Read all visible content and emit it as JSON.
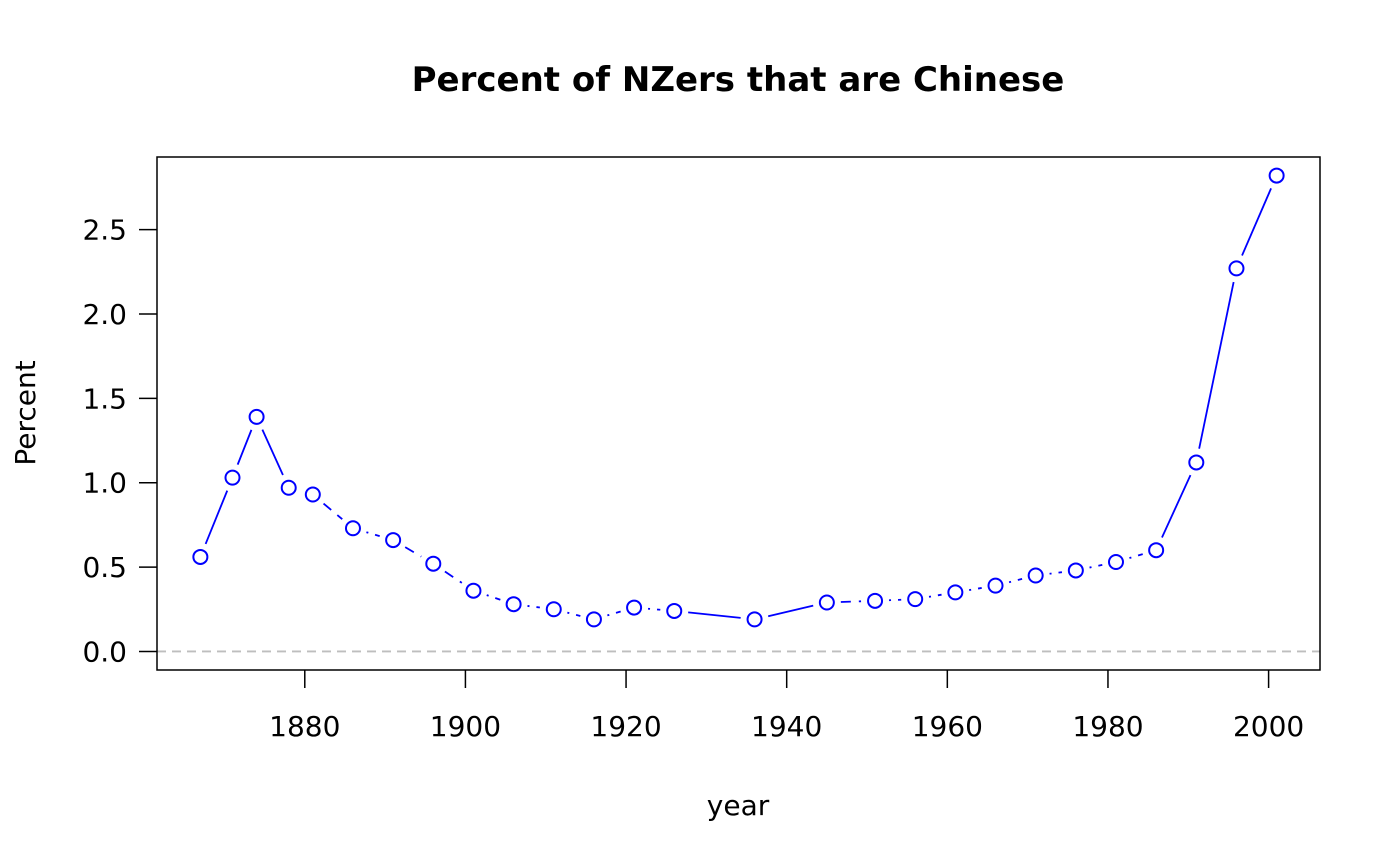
{
  "chart_data": {
    "type": "line",
    "title": "Percent of NZers that are Chinese",
    "xlabel": "year",
    "ylabel": "Percent",
    "x_ticks": [
      1880,
      1900,
      1920,
      1940,
      1960,
      1980,
      2000
    ],
    "y_ticks": [
      "0.0",
      "0.5",
      "1.0",
      "1.5",
      "2.0",
      "2.5"
    ],
    "xlim": [
      1861.6,
      2006.4
    ],
    "ylim": [
      -0.11,
      2.93
    ],
    "reference_line": {
      "y": 0,
      "color": "#bebebe",
      "style": "dashed"
    },
    "series": [
      {
        "color": "#0000ff",
        "marker": "open-circle",
        "x": [
          1867,
          1871,
          1874,
          1878,
          1881,
          1886,
          1891,
          1896,
          1901,
          1906,
          1911,
          1916,
          1921,
          1926,
          1936,
          1945,
          1951,
          1956,
          1961,
          1966,
          1971,
          1976,
          1981,
          1986,
          1991,
          1996,
          2001
        ],
        "y": [
          0.56,
          1.03,
          1.39,
          0.97,
          0.93,
          0.73,
          0.66,
          0.52,
          0.36,
          0.28,
          0.25,
          0.19,
          0.26,
          0.24,
          0.19,
          0.29,
          0.3,
          0.31,
          0.35,
          0.39,
          0.45,
          0.48,
          0.53,
          0.6,
          1.12,
          2.27,
          2.82
        ],
        "segment_styles": [
          "solid",
          "solid",
          "solid",
          "solid",
          "dashed",
          "dotdash",
          "dashed",
          "dashed",
          "dotdash",
          "dotdash",
          "dotdash",
          "dotdash",
          "dotdash",
          "solid",
          "solid",
          "dashed",
          "dotdash",
          "dotdash",
          "dotdash",
          "dotdash",
          "dotdash",
          "dotdash",
          "dotdash",
          "solid",
          "solid",
          "solid"
        ]
      }
    ]
  }
}
